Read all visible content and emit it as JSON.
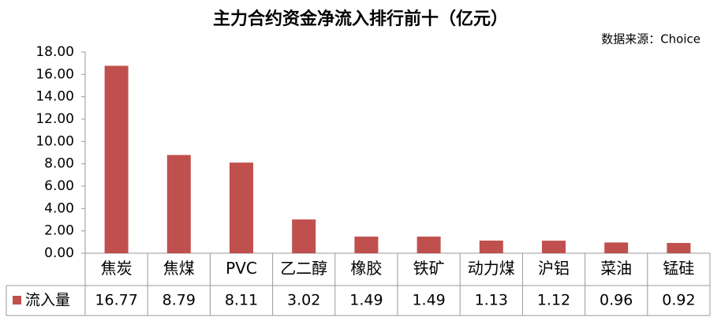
{
  "chart_data": {
    "type": "bar",
    "title": "主力合约资金净流入排行前十（亿元）",
    "source": "数据来源：Choice",
    "categories": [
      "焦炭",
      "焦煤",
      "PVC",
      "乙二醇",
      "橡胶",
      "铁矿",
      "动力煤",
      "沪铝",
      "菜油",
      "锰硅"
    ],
    "series": [
      {
        "name": "流入量",
        "color": "#c0504d",
        "values": [
          16.77,
          8.79,
          8.11,
          3.02,
          1.49,
          1.49,
          1.13,
          1.12,
          0.96,
          0.92
        ]
      }
    ],
    "ylim": [
      0,
      18
    ],
    "yticks": [
      {
        "value": 0,
        "label": "0.00"
      },
      {
        "value": 2,
        "label": "2.00"
      },
      {
        "value": 4,
        "label": "4.00"
      },
      {
        "value": 6,
        "label": "6.00"
      },
      {
        "value": 8,
        "label": "8.00"
      },
      {
        "value": 10,
        "label": "10.00"
      },
      {
        "value": 12,
        "label": "12.00"
      },
      {
        "value": 14,
        "label": "14.00"
      },
      {
        "value": 16,
        "label": "16.00"
      },
      {
        "value": 18,
        "label": "18.00"
      }
    ],
    "grid": false
  }
}
